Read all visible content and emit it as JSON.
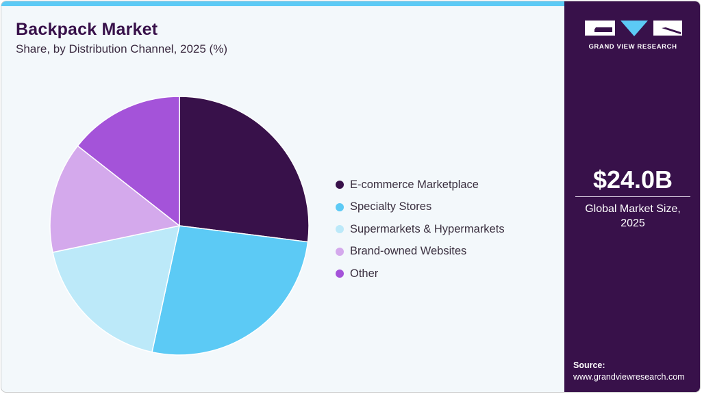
{
  "header": {
    "title": "Backpack Market",
    "subtitle": "Share, by Distribution Channel, 2025 (%)"
  },
  "colors": {
    "accent_bar": "#5ccaf5",
    "side_panel": "#38114a",
    "background": "#f3f8fb"
  },
  "legend": {
    "items": [
      {
        "label": "E-commerce Marketplace",
        "color": "#38114a"
      },
      {
        "label": "Specialty Stores",
        "color": "#5ccaf5"
      },
      {
        "label": "Supermarkets & Hypermarkets",
        "color": "#bce9f9"
      },
      {
        "label": "Brand-owned Websites",
        "color": "#d4a9ec"
      },
      {
        "label": "Other",
        "color": "#a453d9"
      }
    ]
  },
  "side_panel": {
    "logo_text": "GRAND VIEW RESEARCH",
    "market_size": "$24.0B",
    "market_label_line1": "Global Market Size,",
    "market_label_line2": "2025",
    "source_label": "Source:",
    "source_url": "www.grandviewresearch.com"
  },
  "chart_data": {
    "type": "pie",
    "title": "Backpack Market",
    "subtitle": "Share, by Distribution Channel, 2025 (%)",
    "categories": [
      "E-commerce Marketplace",
      "Specialty Stores",
      "Supermarkets & Hypermarkets",
      "Brand-owned Websites",
      "Other"
    ],
    "values": [
      27.0,
      26.4,
      18.3,
      13.9,
      14.4
    ],
    "colors": [
      "#38114a",
      "#5ccaf5",
      "#bce9f9",
      "#d4a9ec",
      "#a453d9"
    ],
    "start_angle": "12 o'clock, clockwise",
    "legend_position": "right",
    "data_labels": false
  }
}
